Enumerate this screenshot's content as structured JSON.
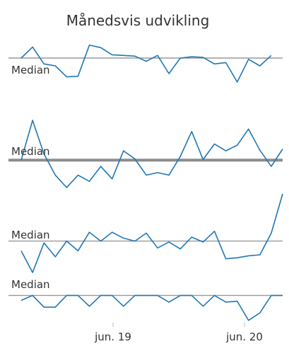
{
  "chart_data": {
    "type": "line",
    "title": "Månedsvis udvikling",
    "x": [
      "2018-05",
      "2018-06",
      "2018-07",
      "2018-08",
      "2018-09",
      "2018-10",
      "2018-11",
      "2018-12",
      "2019-01",
      "2019-02",
      "2019-03",
      "2019-04",
      "2019-05",
      "2019-06",
      "2019-07",
      "2019-08",
      "2019-09",
      "2019-10",
      "2019-11",
      "2019-12",
      "2020-01",
      "2020-02",
      "2020-03",
      "2020-04",
      "2020-05",
      "2020-06",
      "2020-07",
      "2020-08",
      "2020-09",
      "2020-10"
    ],
    "x_ticks": [
      {
        "value": "2019-06",
        "label": "jun. 19"
      },
      {
        "value": "2020-06",
        "label": "jun. 20"
      }
    ],
    "median_label": "Median",
    "panels": [
      {
        "median": 0,
        "ylim": [
          -1.8,
          1.2
        ],
        "values": [
          0,
          0.85,
          -0.45,
          -0.6,
          -1.45,
          -1.4,
          1.0,
          0.8,
          0.25,
          0.2,
          0.15,
          -0.25,
          0.2,
          -1.2,
          0,
          0.1,
          0.05,
          -0.45,
          -0.35,
          -1.85,
          -0.1,
          -0.6,
          0.2
        ],
        "x_index": [
          0,
          1,
          2,
          3,
          4,
          5,
          6,
          7,
          8,
          9,
          10,
          11,
          12,
          13,
          14,
          15,
          16,
          17,
          18,
          19,
          20,
          21,
          22
        ]
      },
      {
        "median": 0,
        "ylim": [
          -2.2,
          3.2
        ],
        "values": [
          0,
          3.2,
          0.5,
          -1.2,
          -2.2,
          -1.2,
          -1.7,
          -0.5,
          -1.5,
          0.75,
          0.1,
          -1.2,
          -1.0,
          -1.2,
          0.3,
          2.3,
          0.05,
          1.3,
          0.75,
          1.2,
          2.5,
          0.8,
          -0.5,
          0.9
        ],
        "x_index": [
          0,
          1,
          2,
          3,
          4,
          5,
          6,
          7,
          8,
          9,
          10,
          11,
          12,
          13,
          14,
          15,
          16,
          17,
          18,
          19,
          20,
          21,
          22,
          23
        ]
      },
      {
        "median": 0,
        "ylim": [
          -1.6,
          2.0
        ],
        "values": [
          -0.5,
          -1.6,
          -0.1,
          -0.8,
          0,
          -0.5,
          0.45,
          0,
          0.45,
          0.15,
          0,
          0.4,
          -0.35,
          -0.05,
          -0.4,
          0.2,
          -0.05,
          0.5,
          -0.9,
          -0.85,
          -0.75,
          -0.7,
          0.4,
          2.4
        ],
        "x_index": [
          0,
          1,
          2,
          3,
          4,
          5,
          6,
          7,
          8,
          9,
          10,
          11,
          12,
          13,
          14,
          15,
          16,
          17,
          18,
          19,
          20,
          21,
          22,
          23
        ]
      },
      {
        "median": 0,
        "ylim": [
          -1.6,
          0.4
        ],
        "values": [
          -0.3,
          0,
          -0.7,
          -0.7,
          0,
          0,
          -0.65,
          0,
          0,
          -0.65,
          0,
          0,
          0,
          -0.4,
          0,
          0,
          -0.65,
          0,
          -0.4,
          -0.35,
          -1.5,
          -1.05,
          0,
          0
        ],
        "x_index": [
          0,
          1,
          2,
          3,
          4,
          5,
          6,
          7,
          8,
          9,
          10,
          11,
          12,
          13,
          14,
          15,
          16,
          17,
          18,
          19,
          20,
          21,
          22,
          23
        ]
      }
    ]
  }
}
